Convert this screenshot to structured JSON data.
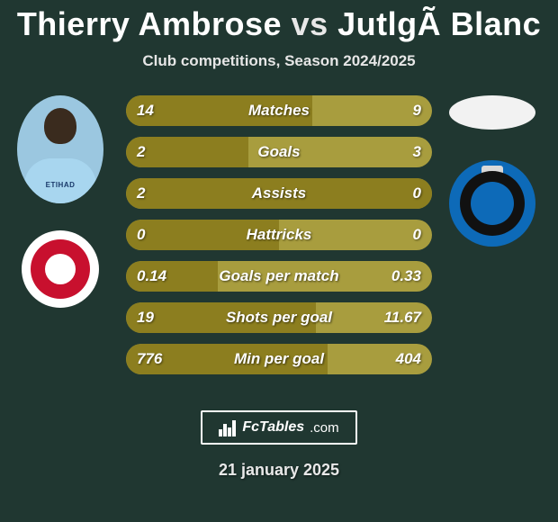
{
  "header": {
    "player1": "Thierry Ambrose",
    "vs": "vs",
    "player2": "JutlgÃ  Blanc",
    "subtitle": "Club competitions, Season 2024/2025"
  },
  "stats": {
    "rows": [
      {
        "label": "Matches",
        "left": "14",
        "right": "9",
        "left_ratio": 0.61
      },
      {
        "label": "Goals",
        "left": "2",
        "right": "3",
        "left_ratio": 0.4
      },
      {
        "label": "Assists",
        "left": "2",
        "right": "0",
        "left_ratio": 1.0
      },
      {
        "label": "Hattricks",
        "left": "0",
        "right": "0",
        "left_ratio": 0.5
      },
      {
        "label": "Goals per match",
        "left": "0.14",
        "right": "0.33",
        "left_ratio": 0.3
      },
      {
        "label": "Shots per goal",
        "left": "19",
        "right": "11.67",
        "left_ratio": 0.62
      },
      {
        "label": "Min per goal",
        "left": "776",
        "right": "404",
        "left_ratio": 0.66
      }
    ],
    "bar_bg": "#a89d3e",
    "bar_fill": "#8c7e1f",
    "text_color": "#ffffff"
  },
  "footer": {
    "brand_fc": "FcTables",
    "brand_com": ".com",
    "date": "21 january 2025"
  },
  "colors": {
    "background": "#203731",
    "title": "#ffffff"
  }
}
